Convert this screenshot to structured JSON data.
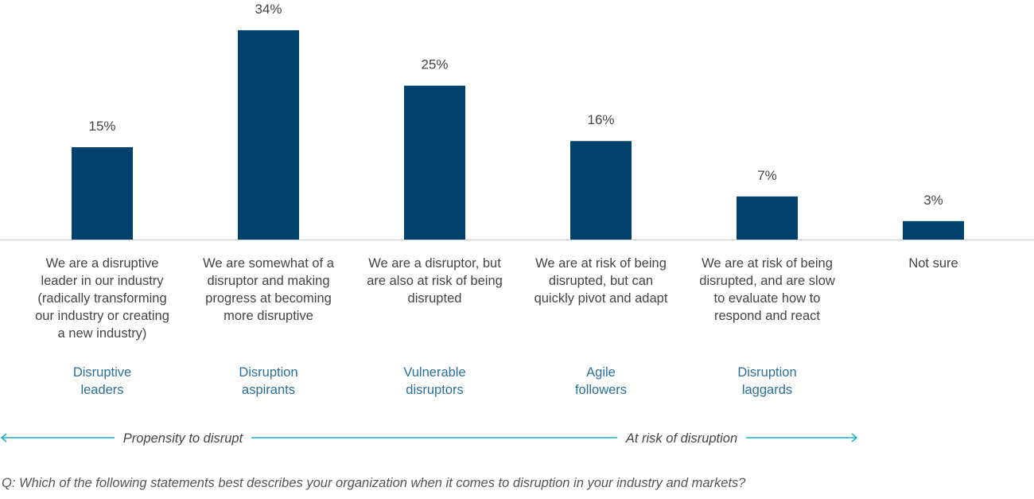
{
  "chart_data": {
    "type": "bar",
    "categories": [
      "We are a disruptive leader in our industry (radically transforming our industry or creating a new industry)",
      "We are somewhat of a disruptor and making progress at becoming more disruptive",
      "We are a disruptor, but are also at risk of being disrupted",
      "We are at risk of being disrupted, but can quickly pivot and adapt",
      "We are at risk of being disrupted, and are slow to evaluate how to respond and react",
      "Not sure"
    ],
    "category_lines": [
      [
        "We are a disruptive",
        "leader in our industry",
        "(radically transforming",
        "our industry or creating",
        "a new industry)"
      ],
      [
        "We are somewhat of a",
        "disruptor and making",
        "progress at becoming",
        "more disruptive"
      ],
      [
        "We are a disruptor, but",
        "are also at risk of being",
        "disrupted"
      ],
      [
        "We are at risk of being",
        "disrupted, but can",
        "quickly pivot and adapt"
      ],
      [
        "We are at risk of being",
        "disrupted, and are slow",
        "to evaluate how to",
        "respond and react"
      ],
      [
        "Not sure"
      ]
    ],
    "segments": [
      [
        "Disruptive",
        "leaders"
      ],
      [
        "Disruption",
        "aspirants"
      ],
      [
        "Vulnerable",
        "disruptors"
      ],
      [
        "Agile",
        "followers"
      ],
      [
        "Disruption",
        "laggards"
      ],
      []
    ],
    "values": [
      15,
      34,
      25,
      16,
      7,
      3
    ],
    "value_labels": [
      "15%",
      "34%",
      "25%",
      "16%",
      "7%",
      "3%"
    ],
    "ylim": [
      0,
      34
    ],
    "title": "",
    "xlabel": "",
    "ylabel": "",
    "grid": false,
    "colors": {
      "bar": "#00426b",
      "segment_text": "#2a6f97",
      "arrow": "#1ab0c8",
      "baseline": "#cccccc",
      "text": "#444444"
    },
    "arrows": {
      "left_label": "Propensity to disrupt",
      "right_label": "At risk of disruption"
    },
    "question": "Q: Which of the following statements best describes your organization when it comes to disruption in your industry and markets?"
  }
}
